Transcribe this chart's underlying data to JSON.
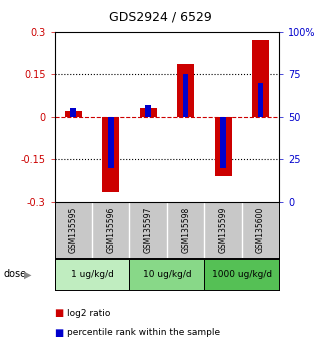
{
  "title": "GDS2924 / 6529",
  "samples": [
    "GSM135595",
    "GSM135596",
    "GSM135597",
    "GSM135598",
    "GSM135599",
    "GSM135600"
  ],
  "log2_ratios": [
    0.02,
    -0.265,
    0.03,
    0.185,
    -0.21,
    0.27
  ],
  "percentile_ranks": [
    55,
    20,
    57,
    75,
    20,
    70
  ],
  "dose_groups": [
    {
      "label": "1 ug/kg/d",
      "samples": [
        0,
        1
      ],
      "color": "#c0edc0"
    },
    {
      "label": "10 ug/kg/d",
      "samples": [
        2,
        3
      ],
      "color": "#88d888"
    },
    {
      "label": "1000 ug/kg/d",
      "samples": [
        4,
        5
      ],
      "color": "#55c055"
    }
  ],
  "ylim": [
    -0.3,
    0.3
  ],
  "yticks": [
    -0.3,
    -0.15,
    0.0,
    0.15,
    0.3
  ],
  "ytick_labels": [
    "-0.3",
    "-0.15",
    "0",
    "0.15",
    "0.3"
  ],
  "right_ytick_pcts": [
    0,
    25,
    50,
    75,
    100
  ],
  "right_ytick_labels": [
    "0",
    "25",
    "50",
    "75",
    "100%"
  ],
  "left_color": "#cc0000",
  "right_color": "#0000cc",
  "bar_color_red": "#cc0000",
  "bar_color_blue": "#0000cc",
  "hline_red_color": "#cc0000",
  "dot_hline_color": "black",
  "bg_color": "#ffffff",
  "plot_bg": "#ffffff",
  "sample_box_color": "#c8c8c8",
  "legend_red": "log2 ratio",
  "legend_blue": "percentile rank within the sample"
}
